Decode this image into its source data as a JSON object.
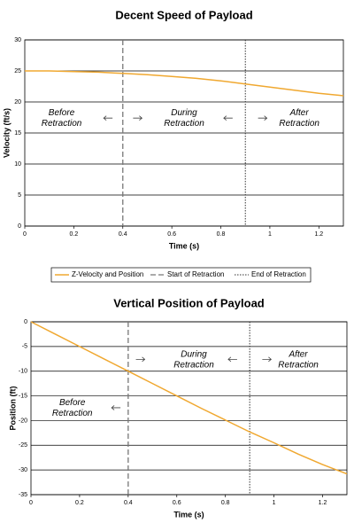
{
  "chart_data": [
    {
      "type": "line",
      "title": "Decent Speed of Payload",
      "xlabel": "Time (s)",
      "ylabel": "Velocity (ft/s)",
      "x": [
        0,
        0.1,
        0.2,
        0.3,
        0.4,
        0.5,
        0.6,
        0.7,
        0.8,
        0.9,
        1.0,
        1.1,
        1.2,
        1.3
      ],
      "series": [
        {
          "name": "Z-Velocity and Position",
          "color": "#f0a830",
          "values": [
            25,
            25,
            24.9,
            24.8,
            24.6,
            24.4,
            24.1,
            23.8,
            23.4,
            22.9,
            22.4,
            21.9,
            21.4,
            21
          ]
        }
      ],
      "vlines": [
        {
          "name": "Start of Retraction",
          "x": 0.4,
          "style": "dashed"
        },
        {
          "name": "End of Retraction",
          "x": 0.9,
          "style": "dotted"
        }
      ],
      "annotations": [
        [
          "Before",
          "Retraction"
        ],
        [
          "During",
          "Retraction"
        ],
        [
          "After",
          "Retraction"
        ]
      ],
      "xlim": [
        0,
        1.3
      ],
      "xticks": [
        0,
        0.2,
        0.4,
        0.6,
        0.8,
        1,
        1.2
      ],
      "ylim": [
        0,
        30
      ],
      "yticks": [
        0,
        5,
        10,
        15,
        20,
        25,
        30
      ],
      "grid": true
    },
    {
      "type": "line",
      "title": "Vertical Position of Payload",
      "xlabel": "Time (s)",
      "ylabel": "Position (ft)",
      "x": [
        0,
        0.1,
        0.2,
        0.3,
        0.4,
        0.5,
        0.6,
        0.7,
        0.8,
        0.9,
        1.0,
        1.1,
        1.2,
        1.3
      ],
      "series": [
        {
          "color": "#f0a830",
          "values": [
            0,
            -2.5,
            -5,
            -7.5,
            -10,
            -12.5,
            -15,
            -17.5,
            -19.9,
            -22.3,
            -24.5,
            -26.8,
            -28.9,
            -30.8
          ]
        }
      ],
      "vlines": [
        {
          "x": 0.4,
          "style": "dashed"
        },
        {
          "x": 0.9,
          "style": "dotted"
        }
      ],
      "annotations": [
        [
          "During",
          "Retraction"
        ],
        [
          "After",
          "Retraction"
        ],
        [
          "Before",
          "Retraction"
        ]
      ],
      "xlim": [
        0,
        1.3
      ],
      "xticks": [
        0,
        0.2,
        0.4,
        0.6,
        0.8,
        1,
        1.2
      ],
      "ylim": [
        -35,
        0
      ],
      "yticks": [
        -35,
        -30,
        -25,
        -20,
        -15,
        -10,
        -5,
        0
      ],
      "grid": true
    }
  ]
}
